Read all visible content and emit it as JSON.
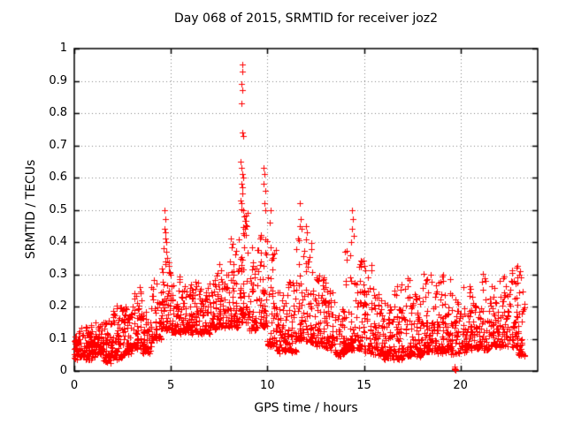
{
  "chart_data": {
    "type": "scatter",
    "title": "Day 068 of 2015, SRMTID for receiver joz2",
    "xlabel": "GPS time / hours",
    "ylabel": "SRMTID / TECUs",
    "legend": "none",
    "background_color": "#ffffff",
    "axis_color": "#000000",
    "marker": "plus",
    "marker_color": "#ff0000",
    "marker_size_px": 7,
    "xlim": [
      0,
      24
    ],
    "ylim": [
      0,
      1
    ],
    "xticks": {
      "values": [
        0,
        5,
        10,
        15,
        20
      ],
      "labels": [
        "0",
        "5",
        "10",
        "15",
        "20"
      ]
    },
    "yticks": {
      "values": [
        0,
        0.1,
        0.2,
        0.3,
        0.4,
        0.5,
        0.6,
        0.7,
        0.8,
        0.9,
        1
      ],
      "labels": [
        "0",
        "0.1",
        "0.2",
        "0.3",
        "0.4",
        "0.5",
        "0.6",
        "0.7",
        "0.8",
        "0.9",
        "1"
      ]
    },
    "grid": {
      "style": "dotted",
      "color": "#808080",
      "x_at": [
        5,
        10,
        15,
        20
      ],
      "y_at": [
        0.1,
        0.2,
        0.3,
        0.4,
        0.5,
        0.6,
        0.7,
        0.8,
        0.9
      ]
    },
    "x_data_range": [
      0,
      23.3
    ],
    "density_bins_comment": "dense scatter band approximated as [hour_start, hour_end, y_low, y_high, n_points]",
    "density_bins": [
      [
        0.0,
        0.5,
        0.04,
        0.13,
        58
      ],
      [
        0.5,
        1.0,
        0.04,
        0.14,
        58
      ],
      [
        1.0,
        1.5,
        0.05,
        0.15,
        58
      ],
      [
        1.5,
        2.0,
        0.03,
        0.16,
        58
      ],
      [
        2.0,
        2.5,
        0.04,
        0.2,
        56
      ],
      [
        2.5,
        3.0,
        0.05,
        0.2,
        55
      ],
      [
        3.0,
        3.5,
        0.07,
        0.26,
        55
      ],
      [
        3.5,
        4.0,
        0.06,
        0.18,
        52
      ],
      [
        4.0,
        4.5,
        0.1,
        0.3,
        52
      ],
      [
        4.5,
        5.0,
        0.13,
        0.36,
        55
      ],
      [
        5.0,
        5.5,
        0.12,
        0.3,
        52
      ],
      [
        5.5,
        6.0,
        0.12,
        0.26,
        52
      ],
      [
        6.0,
        6.5,
        0.12,
        0.28,
        52
      ],
      [
        6.5,
        7.0,
        0.12,
        0.26,
        52
      ],
      [
        7.0,
        7.5,
        0.13,
        0.3,
        52
      ],
      [
        7.5,
        8.0,
        0.14,
        0.33,
        52
      ],
      [
        8.0,
        8.5,
        0.14,
        0.42,
        55
      ],
      [
        8.5,
        9.0,
        0.15,
        0.5,
        62
      ],
      [
        9.0,
        9.5,
        0.13,
        0.42,
        52
      ],
      [
        9.5,
        10.0,
        0.14,
        0.45,
        55
      ],
      [
        10.0,
        10.5,
        0.08,
        0.42,
        55
      ],
      [
        10.5,
        11.0,
        0.06,
        0.25,
        52
      ],
      [
        11.0,
        11.5,
        0.06,
        0.28,
        52
      ],
      [
        11.5,
        12.0,
        0.1,
        0.45,
        55
      ],
      [
        12.0,
        12.5,
        0.09,
        0.42,
        52
      ],
      [
        12.5,
        13.0,
        0.08,
        0.3,
        52
      ],
      [
        13.0,
        13.5,
        0.07,
        0.26,
        50
      ],
      [
        13.5,
        14.0,
        0.05,
        0.2,
        50
      ],
      [
        14.0,
        14.5,
        0.07,
        0.38,
        50
      ],
      [
        14.5,
        15.0,
        0.07,
        0.35,
        50
      ],
      [
        15.0,
        15.5,
        0.06,
        0.33,
        50
      ],
      [
        15.5,
        16.0,
        0.05,
        0.24,
        50
      ],
      [
        16.0,
        16.5,
        0.04,
        0.22,
        52
      ],
      [
        16.5,
        17.0,
        0.04,
        0.28,
        52
      ],
      [
        17.0,
        17.5,
        0.05,
        0.3,
        52
      ],
      [
        17.5,
        18.0,
        0.05,
        0.24,
        52
      ],
      [
        18.0,
        18.5,
        0.06,
        0.32,
        52
      ],
      [
        18.5,
        19.0,
        0.06,
        0.28,
        52
      ],
      [
        19.0,
        19.5,
        0.06,
        0.3,
        52
      ],
      [
        19.5,
        20.0,
        0.05,
        0.24,
        46
      ],
      [
        20.0,
        20.5,
        0.06,
        0.26,
        50
      ],
      [
        20.5,
        21.0,
        0.07,
        0.24,
        50
      ],
      [
        21.0,
        21.5,
        0.07,
        0.3,
        50
      ],
      [
        21.5,
        22.0,
        0.08,
        0.27,
        50
      ],
      [
        22.0,
        22.5,
        0.08,
        0.3,
        50
      ],
      [
        22.5,
        23.0,
        0.08,
        0.33,
        50
      ],
      [
        23.0,
        23.3,
        0.05,
        0.3,
        30
      ]
    ],
    "notable_points_comment": "individually readable extreme points [hour, SRMTID]",
    "notable_points": [
      [
        4.65,
        0.5
      ],
      [
        4.7,
        0.47
      ],
      [
        4.68,
        0.44
      ],
      [
        4.73,
        0.43
      ],
      [
        4.72,
        0.41
      ],
      [
        4.78,
        0.4
      ],
      [
        4.62,
        0.38
      ],
      [
        4.75,
        0.37
      ],
      [
        4.82,
        0.35
      ],
      [
        4.7,
        0.34
      ],
      [
        8.68,
        0.95
      ],
      [
        8.7,
        0.93
      ],
      [
        8.67,
        0.89
      ],
      [
        8.72,
        0.87
      ],
      [
        8.66,
        0.83
      ],
      [
        8.69,
        0.74
      ],
      [
        8.73,
        0.73
      ],
      [
        8.62,
        0.65
      ],
      [
        8.65,
        0.63
      ],
      [
        8.7,
        0.61
      ],
      [
        8.76,
        0.6
      ],
      [
        8.64,
        0.58
      ],
      [
        8.68,
        0.57
      ],
      [
        8.72,
        0.55
      ],
      [
        8.6,
        0.53
      ],
      [
        8.66,
        0.52
      ],
      [
        8.74,
        0.5
      ],
      [
        8.79,
        0.48
      ],
      [
        9.82,
        0.63
      ],
      [
        9.86,
        0.61
      ],
      [
        9.8,
        0.58
      ],
      [
        9.88,
        0.56
      ],
      [
        9.84,
        0.52
      ],
      [
        9.91,
        0.5
      ],
      [
        10.15,
        0.5
      ],
      [
        10.1,
        0.46
      ],
      [
        11.7,
        0.52
      ],
      [
        11.72,
        0.47
      ],
      [
        11.68,
        0.45
      ],
      [
        11.76,
        0.44
      ],
      [
        12.02,
        0.45
      ],
      [
        12.06,
        0.43
      ],
      [
        14.38,
        0.5
      ],
      [
        14.42,
        0.47
      ],
      [
        14.4,
        0.44
      ],
      [
        14.46,
        0.42
      ],
      [
        14.33,
        0.4
      ],
      [
        19.68,
        0.005
      ],
      [
        19.7,
        0.007
      ],
      [
        19.72,
        0.004
      ],
      [
        19.74,
        0.006
      ],
      [
        19.76,
        0.005
      ],
      [
        19.71,
        0.013
      ],
      [
        22.88,
        0.32
      ],
      [
        23.02,
        0.3
      ],
      [
        23.08,
        0.31
      ],
      [
        23.15,
        0.29
      ]
    ]
  }
}
